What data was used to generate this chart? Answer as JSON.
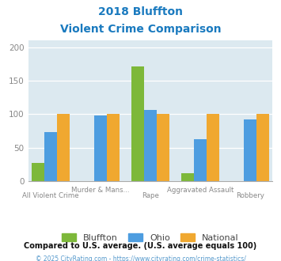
{
  "title_line1": "2018 Bluffton",
  "title_line2": "Violent Crime Comparison",
  "categories": [
    "All Violent Crime",
    "Murder & Mans...",
    "Rape",
    "Aggravated Assault",
    "Robbery"
  ],
  "cat_labels_top": [
    "Murder & Mans...",
    "Aggravated Assault"
  ],
  "cat_labels_bot": [
    "All Violent Crime",
    "Rape",
    "Robbery"
  ],
  "bluffton": [
    27,
    null,
    171,
    12,
    null
  ],
  "ohio": [
    74,
    98,
    106,
    63,
    92
  ],
  "national": [
    100,
    100,
    100,
    100,
    100
  ],
  "bar_colors": {
    "bluffton": "#7db83a",
    "ohio": "#4d9de0",
    "national": "#f0a830"
  },
  "ylim": [
    0,
    210
  ],
  "yticks": [
    0,
    50,
    100,
    150,
    200
  ],
  "plot_bg": "#dce9f0",
  "title_color": "#1a7abf",
  "tick_color": "#888888",
  "footer_note": "Compared to U.S. average. (U.S. average equals 100)",
  "footer_copy": "© 2025 CityRating.com - https://www.cityrating.com/crime-statistics/",
  "bar_width": 0.25
}
